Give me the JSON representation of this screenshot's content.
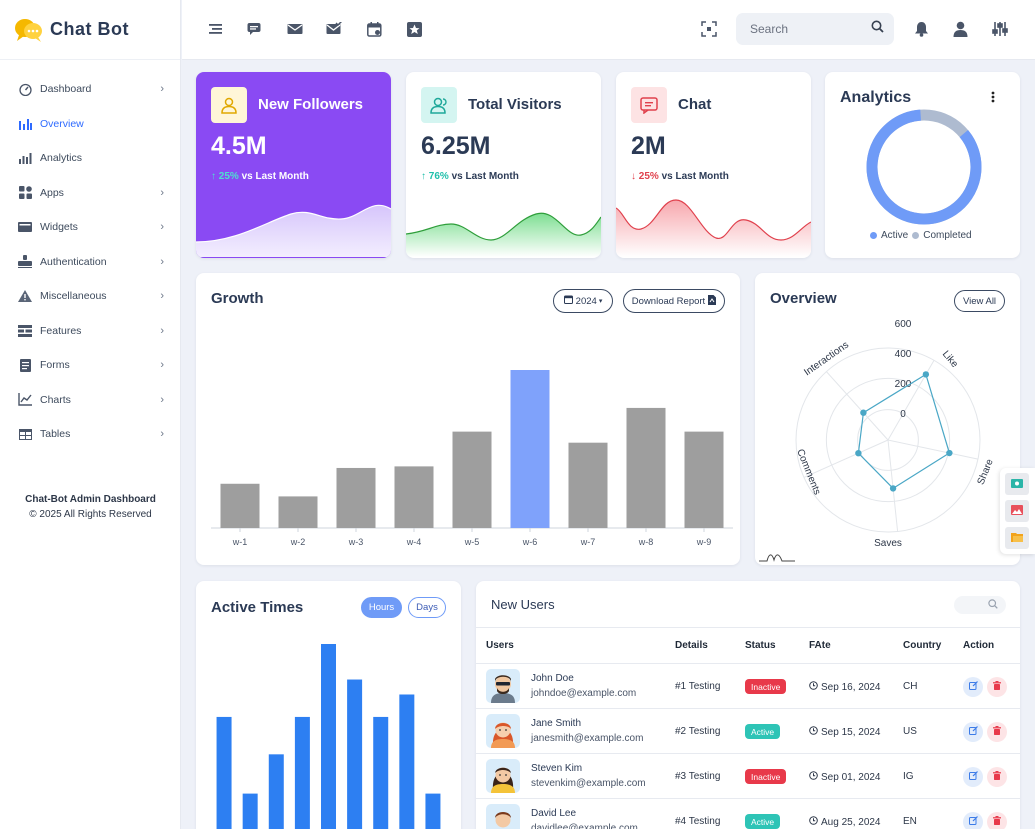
{
  "app": {
    "name": "Chat Bot"
  },
  "sidebar": {
    "items": [
      {
        "label": "Dashboard",
        "icon": "gauge-icon",
        "chevron": true,
        "active": false
      },
      {
        "label": "Overview",
        "icon": "bar-trend-icon",
        "chevron": false,
        "active": true
      },
      {
        "label": "Analytics",
        "icon": "analytics-icon",
        "chevron": false,
        "active": false
      },
      {
        "label": "Apps",
        "icon": "apps-grid-icon",
        "chevron": true,
        "active": false
      },
      {
        "label": "Widgets",
        "icon": "widgets-icon",
        "chevron": true,
        "active": false
      },
      {
        "label": "Authentication",
        "icon": "authentication-icon",
        "chevron": true,
        "active": false
      },
      {
        "label": "Miscellaneous",
        "icon": "warning-triangle-icon",
        "chevron": true,
        "active": false
      },
      {
        "label": "Features",
        "icon": "features-icon",
        "chevron": true,
        "active": false
      },
      {
        "label": "Forms",
        "icon": "forms-icon",
        "chevron": true,
        "active": false
      },
      {
        "label": "Charts",
        "icon": "charts-icon",
        "chevron": true,
        "active": false
      },
      {
        "label": "Tables",
        "icon": "table-icon",
        "chevron": true,
        "active": false
      }
    ],
    "footer_title": "Chat-Bot Admin Dashboard",
    "footer_copy": "© 2025 All Rights Reserved"
  },
  "header": {
    "search_placeholder": "Search"
  },
  "stats": [
    {
      "title": "New Followers",
      "value": "4.5M",
      "delta": "25%",
      "delta_dir": "up",
      "suffix": "vs Last Month",
      "bg": "#8a4af3",
      "icon": "user-icon"
    },
    {
      "title": "Total Visitors",
      "value": "6.25M",
      "delta": "76%",
      "delta_dir": "up",
      "suffix": "vs Last Month",
      "bg": "#ffffff",
      "icon": "users-icon"
    },
    {
      "title": "Chat",
      "value": "2M",
      "delta": "25%",
      "delta_dir": "down",
      "suffix": "vs Last Month",
      "bg": "#ffffff",
      "icon": "message-icon"
    }
  ],
  "analytics": {
    "title": "Analytics",
    "legend_active": "Active",
    "legend_completed": "Completed",
    "active_fraction": 0.85,
    "colors": {
      "active": "#6f9bf7",
      "completed": "#aebbd0"
    }
  },
  "growth": {
    "title": "Growth",
    "year_button": "2024",
    "download_button": "Download Report"
  },
  "overview": {
    "title": "Overview",
    "view_all": "View All"
  },
  "active_times": {
    "title": "Active Times",
    "hours_button": "Hours",
    "days_button": "Days"
  },
  "new_users": {
    "title": "New Users",
    "columns": [
      "Users",
      "Details",
      "Status",
      "FAte",
      "Country",
      "Action"
    ],
    "rows": [
      {
        "name": "John Doe",
        "email": "johndoe@example.com",
        "details": "#1 Testing",
        "status": "Inactive",
        "date": "Sep 16, 2024",
        "country": "CH",
        "avatar": "man-sunglasses"
      },
      {
        "name": "Jane Smith",
        "email": "janesmith@example.com",
        "details": "#2 Testing",
        "status": "Active",
        "date": "Sep 15, 2024",
        "country": "US",
        "avatar": "woman-red-hair"
      },
      {
        "name": "Steven Kim",
        "email": "stevenkim@example.com",
        "details": "#3 Testing",
        "status": "Inactive",
        "date": "Sep 01, 2024",
        "country": "IG",
        "avatar": "woman-dark-hair"
      },
      {
        "name": "David Lee",
        "email": "davidlee@example.com",
        "details": "#4 Testing",
        "status": "Active",
        "date": "Aug 25, 2024",
        "country": "EN",
        "avatar": "man-brown-hair"
      }
    ]
  },
  "chart_data": [
    {
      "type": "bar",
      "categories": [
        "w-1",
        "w-2",
        "w-3",
        "w-4",
        "w-5",
        "w-6",
        "w-7",
        "w-8",
        "w-9"
      ],
      "values": [
        28,
        20,
        38,
        39,
        61,
        100,
        54,
        76,
        61
      ],
      "highlight_index": 5,
      "colors": {
        "default": "#9e9e9e",
        "highlight": "#7fa2fb"
      },
      "ylim": [
        0,
        100
      ]
    },
    {
      "type": "radar",
      "axes": [
        "Like",
        "Share",
        "Saves",
        "Comments",
        "Interactions"
      ],
      "tick_labels": [
        "0",
        "200",
        "400",
        "600"
      ],
      "values": [
        450,
        330,
        200,
        50,
        90
      ],
      "rmax": 600,
      "color": "#4aa7c6"
    },
    {
      "type": "bar",
      "values": [
        61,
        20,
        41,
        61,
        100,
        81,
        61,
        73,
        20
      ],
      "ylim": [
        0,
        100
      ],
      "color": "#2d7ff2"
    }
  ]
}
